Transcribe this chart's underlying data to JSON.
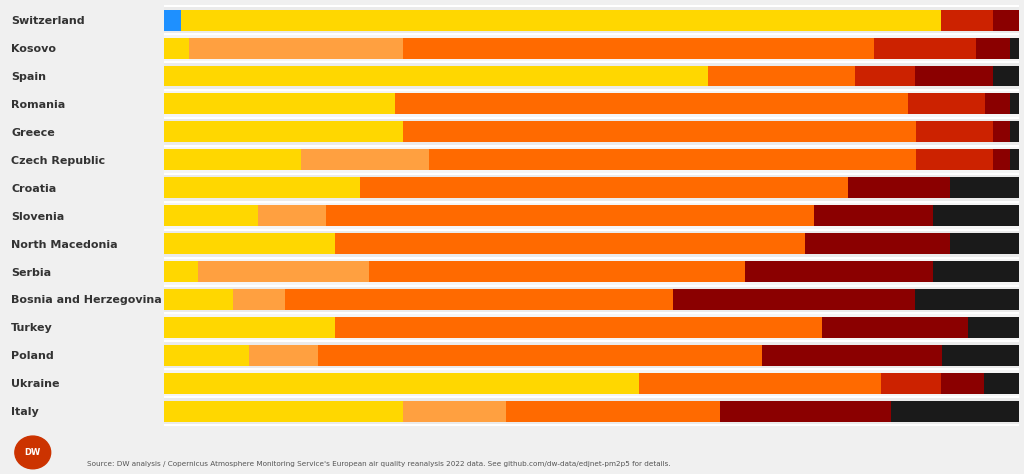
{
  "countries": [
    "Switzerland",
    "Kosovo",
    "Spain",
    "Romania",
    "Greece",
    "Czech Republic",
    "Croatia",
    "Slovenia",
    "North Macedonia",
    "Serbia",
    "Bosnia and Herzegovina",
    "Turkey",
    "Poland",
    "Ukraine",
    "Italy"
  ],
  "seg_colors": [
    "#1E90FF",
    "#FFD700",
    "#FFA040",
    "#FF6A00",
    "#CC2200",
    "#8B0000",
    "#1A1A1A"
  ],
  "background_color": "#F0F0F0",
  "source_text": "Source: DW analysis / Copernicus Atmosphere Monitoring Service's European air quality reanalysis 2022 data. See github.com/dw-data/edjnet-pm2p5 for details.",
  "segments": [
    [
      2,
      88,
      0,
      0,
      6,
      3,
      0
    ],
    [
      0,
      3,
      25,
      55,
      12,
      4,
      1
    ],
    [
      0,
      63,
      0,
      17,
      7,
      9,
      3
    ],
    [
      0,
      27,
      0,
      60,
      9,
      3,
      1
    ],
    [
      0,
      28,
      0,
      60,
      9,
      2,
      1
    ],
    [
      0,
      16,
      15,
      57,
      9,
      2,
      1
    ],
    [
      0,
      23,
      0,
      57,
      0,
      12,
      8
    ],
    [
      0,
      11,
      8,
      57,
      0,
      14,
      10
    ],
    [
      0,
      20,
      0,
      55,
      0,
      17,
      8
    ],
    [
      0,
      4,
      20,
      44,
      0,
      22,
      10
    ],
    [
      0,
      8,
      6,
      45,
      0,
      28,
      12
    ],
    [
      0,
      20,
      0,
      57,
      0,
      17,
      6
    ],
    [
      0,
      10,
      8,
      52,
      0,
      21,
      9
    ],
    [
      0,
      55,
      0,
      28,
      7,
      5,
      4
    ],
    [
      0,
      28,
      12,
      25,
      0,
      20,
      15
    ]
  ],
  "label_fontsize": 8,
  "bar_height": 0.75
}
